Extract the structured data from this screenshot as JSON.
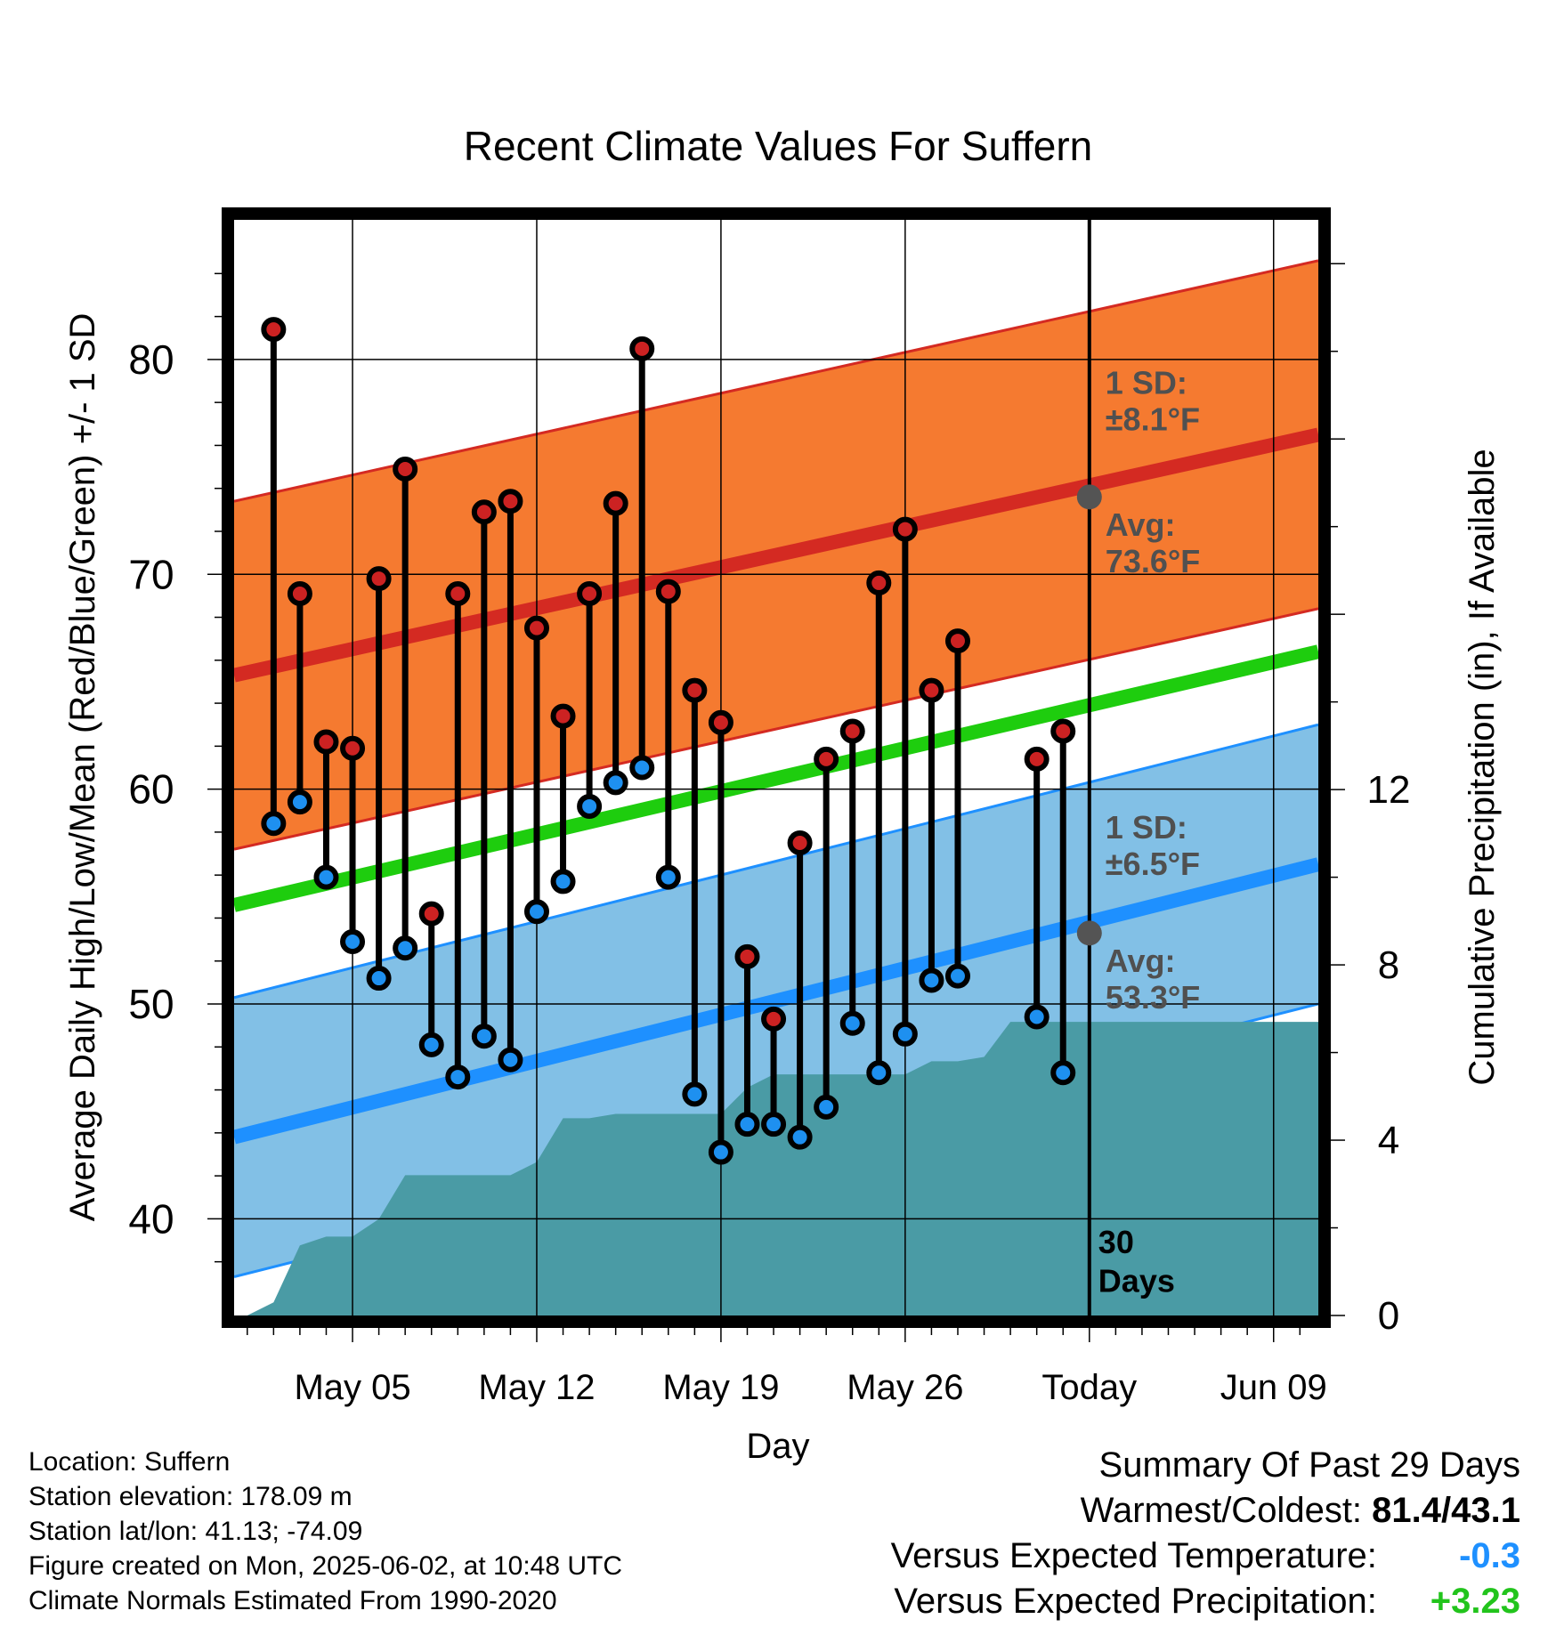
{
  "chart_data": {
    "type": "line",
    "title": "Recent Climate Values For Suffern",
    "xlabel": "Day",
    "ylabel_left": "Average Daily High/Low/Mean (Red/Blue/Green) +/- 1 SD",
    "ylabel_right": "Cumulative Precipitation (in), If Available",
    "xlim": [
      0.5,
      41.7
    ],
    "ylim_left": [
      35.5,
      86.5
    ],
    "ylim_right": [
      0,
      25
    ],
    "x_tick_values": [
      5,
      12,
      19,
      26,
      33,
      40
    ],
    "x_tick_labels": [
      "May 05",
      "May 12",
      "May 19",
      "May 26",
      "Today",
      "Jun 09"
    ],
    "y_ticks_left": [
      40,
      50,
      60,
      70,
      80
    ],
    "y_ticks_right": [
      0,
      4,
      8,
      12
    ],
    "grid": true,
    "today_x": 33,
    "normals": {
      "x": [
        0.5,
        41.7
      ],
      "high_avg": [
        65.3,
        76.5
      ],
      "high_sd": 8.1,
      "mean_avg": [
        54.6,
        66.4
      ],
      "low_avg": [
        43.8,
        56.5
      ],
      "low_sd": 6.5
    },
    "days": [
      2,
      3,
      4,
      5,
      6,
      7,
      8,
      9,
      10,
      11,
      12,
      13,
      14,
      15,
      16,
      17,
      18,
      19,
      20,
      21,
      22,
      23,
      24,
      25,
      26,
      27,
      28,
      29,
      31,
      32
    ],
    "highs": [
      81.4,
      69.1,
      62.2,
      61.9,
      69.8,
      74.9,
      54.2,
      69.1,
      72.9,
      73.4,
      67.5,
      63.4,
      69.1,
      73.3,
      80.5,
      69.2,
      64.6,
      63.1,
      52.2,
      49.3,
      57.5,
      61.4,
      62.7,
      69.6,
      72.1,
      64.6,
      66.9,
      null,
      61.4,
      62.7
    ],
    "lows": [
      58.4,
      59.4,
      55.9,
      52.9,
      51.2,
      52.6,
      48.1,
      46.6,
      48.5,
      47.4,
      54.3,
      55.7,
      59.2,
      60.3,
      61.0,
      55.9,
      45.8,
      43.1,
      44.4,
      44.4,
      43.8,
      45.2,
      49.1,
      46.8,
      48.6,
      51.1,
      51.3,
      null,
      49.4,
      46.8
    ],
    "precip": {
      "x": [
        1,
        2,
        3,
        4,
        5,
        6,
        7,
        8,
        9,
        10,
        11,
        12,
        13,
        14,
        15,
        16,
        17,
        18,
        19,
        20,
        21,
        22,
        23,
        24,
        25,
        26,
        27,
        28,
        29,
        30,
        31,
        41.7
      ],
      "y": [
        0,
        0.3,
        1.6,
        1.8,
        1.8,
        2.2,
        3.2,
        3.2,
        3.2,
        3.2,
        3.2,
        3.5,
        4.5,
        4.5,
        4.6,
        4.6,
        4.6,
        4.6,
        4.6,
        5.2,
        5.5,
        5.5,
        5.5,
        5.5,
        5.5,
        5.5,
        5.8,
        5.8,
        5.9,
        6.7,
        6.7,
        6.7
      ]
    },
    "annotations": {
      "high_sd_label": "1 SD:",
      "high_sd_value": "±8.1°F",
      "high_avg_label": "Avg:",
      "high_avg_value": "73.6°F",
      "low_sd_label": "1 SD:",
      "low_sd_value": "±6.5°F",
      "low_avg_label": "Avg:",
      "low_avg_value": "53.3°F",
      "days_count": "30",
      "days_word": "Days"
    },
    "today_high_avg": 73.6,
    "today_low_avg": 53.3,
    "colors": {
      "high_band": "#f57a30",
      "high_line": "#d42a22",
      "low_band": "#82c0e6",
      "low_line": "#1e90ff",
      "mean_line": "#1ecd0e",
      "precip_fill": "#4a9ba5",
      "high_dot": "#cc2222",
      "low_dot": "#1e90f0",
      "today_marker": "#545454",
      "annotation_text": "#505050"
    }
  },
  "info": {
    "location": "Location: Suffern",
    "elevation": "Station elevation: 178.09 m",
    "latlon": "Station lat/lon: 41.13; -74.09",
    "created": "Figure created on Mon, 2025-06-02, at 10:48 UTC",
    "normals": "Climate Normals Estimated From 1990-2020"
  },
  "summary": {
    "title": "Summary Of Past 29 Days",
    "warmest_label": "Warmest/Coldest:",
    "warmest_value": "81.4/43.1",
    "temp_label": "Versus Expected Temperature:",
    "temp_value": "-0.3",
    "precip_label": "Versus Expected Precipitation:",
    "precip_value": "+3.23"
  }
}
